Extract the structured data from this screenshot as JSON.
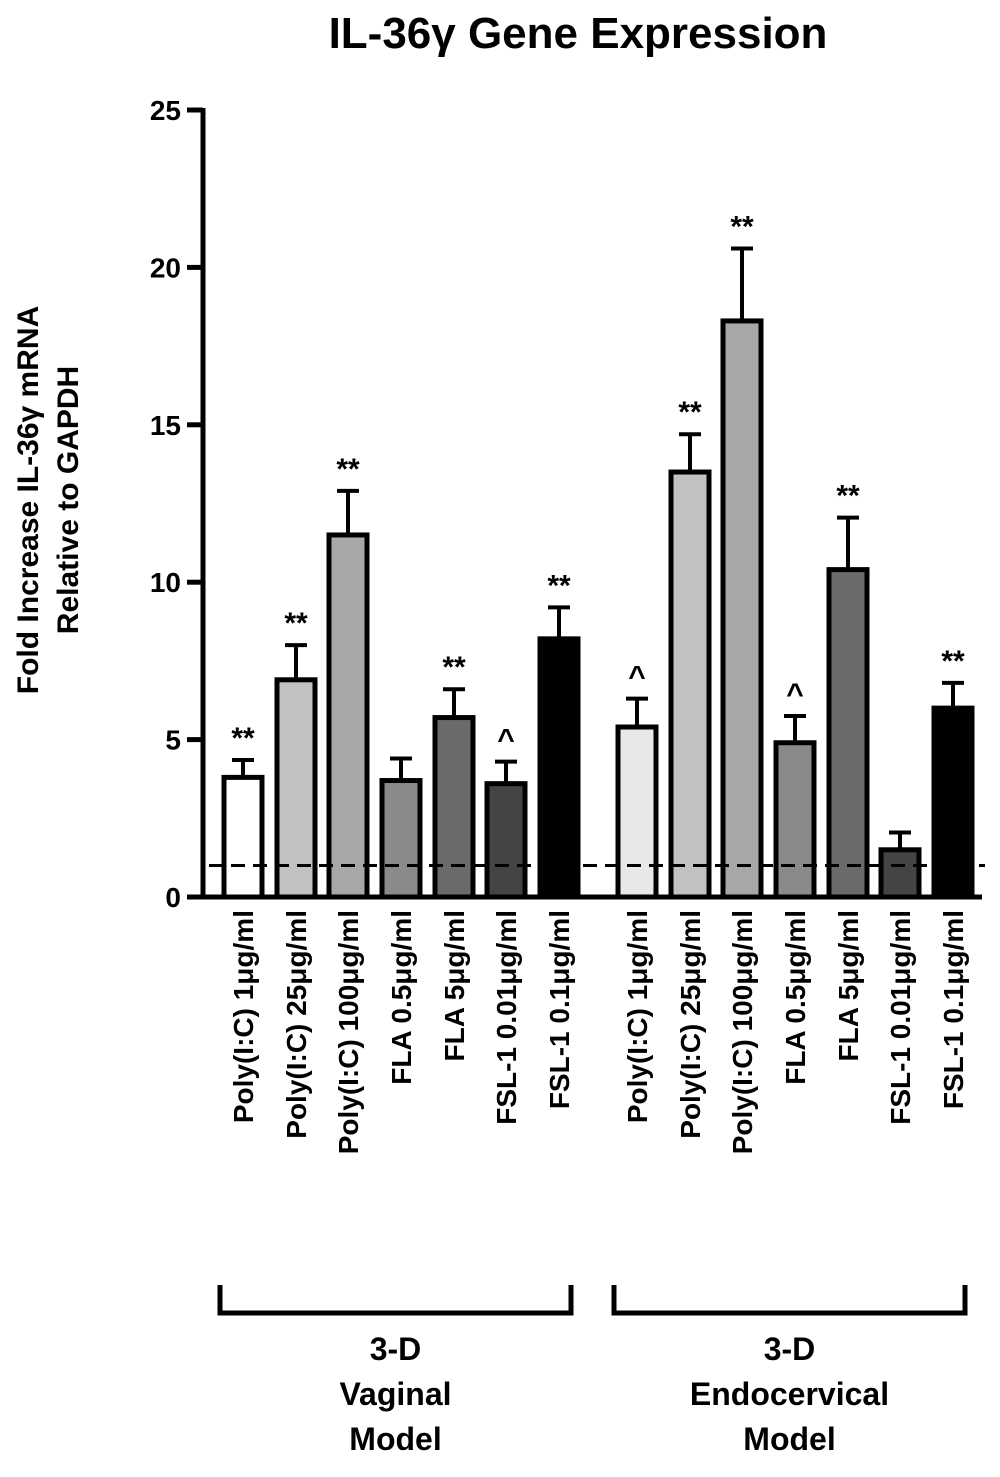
{
  "chart_data": {
    "type": "bar",
    "title": "IL-36γ Gene Expression",
    "ylabel_lines": [
      "Fold Increase IL-36γ mRNA",
      "Relative to GAPDH"
    ],
    "ylim": [
      0,
      25
    ],
    "yticks": [
      "0",
      "5",
      "10",
      "15",
      "20",
      "25"
    ],
    "baseline_reference": 1,
    "categories": [
      "Poly(I:C) 1μg/ml",
      "Poly(I:C) 25μg/ml",
      "Poly(I:C) 100μg/ml",
      "FLA 0.5μg/ml",
      "FLA 5μg/ml",
      "FSL-1 0.01μg/ml",
      "FSL-1 0.1μg/ml",
      "Poly(I:C) 1μg/ml",
      "Poly(I:C) 25μg/ml",
      "Poly(I:C) 100μg/ml",
      "FLA 0.5μg/ml",
      "FLA 5μg/ml",
      "FSL-1 0.01μg/ml",
      "FSL-1 0.1μg/ml"
    ],
    "values": [
      3.8,
      6.9,
      11.5,
      3.7,
      5.7,
      3.6,
      8.2,
      5.4,
      13.5,
      18.3,
      4.9,
      10.4,
      1.5,
      6.0
    ],
    "errors": [
      0.55,
      1.1,
      1.4,
      0.7,
      0.9,
      0.7,
      1.0,
      0.9,
      1.2,
      2.3,
      0.85,
      1.65,
      0.55,
      0.8
    ],
    "significance": [
      "**",
      "**",
      "**",
      "",
      "**",
      "^",
      "**",
      "^",
      "**",
      "**",
      "^",
      "**",
      "",
      "**"
    ],
    "colors": [
      "#ffffff",
      "#c2c2c2",
      "#a8a8a8",
      "#8a8a8a",
      "#6a6a6a",
      "#444444",
      "#000000",
      "#e8e8e8",
      "#c2c2c2",
      "#a8a8a8",
      "#8a8a8a",
      "#6a6a6a",
      "#444444",
      "#000000"
    ],
    "groups": [
      {
        "lines": [
          "3-D",
          "Vaginal",
          "Model"
        ],
        "from": 0,
        "to": 6
      },
      {
        "lines": [
          "3-D",
          "Endocervical",
          "Model"
        ],
        "from": 7,
        "to": 13
      }
    ]
  }
}
